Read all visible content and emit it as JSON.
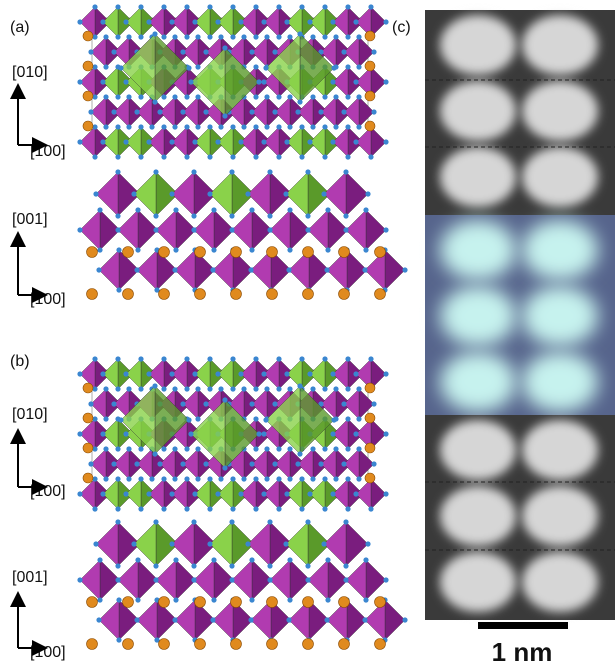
{
  "panels": [
    {
      "label": "(a)",
      "views": [
        {
          "axes": [
            "[010]",
            "[100]"
          ]
        },
        {
          "axes": [
            "[001]",
            "[100]"
          ]
        }
      ]
    },
    {
      "label": "(b)",
      "views": [
        {
          "axes": [
            "[010]",
            "[100]"
          ]
        },
        {
          "axes": [
            "[001]",
            "[100]"
          ]
        }
      ]
    },
    {
      "label": "(c)",
      "scale_bar": "1 nm"
    }
  ]
}
